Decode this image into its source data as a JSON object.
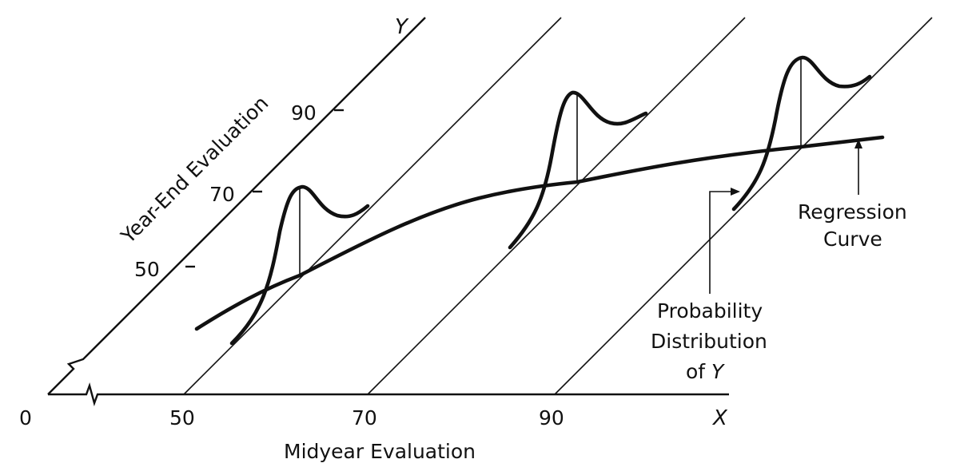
{
  "x_axis": {
    "letter": "X",
    "origin_label": "0",
    "ticks": [
      "50",
      "70",
      "90"
    ],
    "title": "Midyear Evaluation"
  },
  "y_axis": {
    "letter": "Y",
    "ticks": [
      "50",
      "70",
      "90"
    ],
    "title": "Year-End Evaluation"
  },
  "annotations": {
    "regression_line1": "Regression",
    "regression_line2": "Curve",
    "probability_line1": "Probability",
    "probability_line2": "Distribution",
    "probability_line3_prefix": "of ",
    "probability_line3_var": "Y"
  }
}
